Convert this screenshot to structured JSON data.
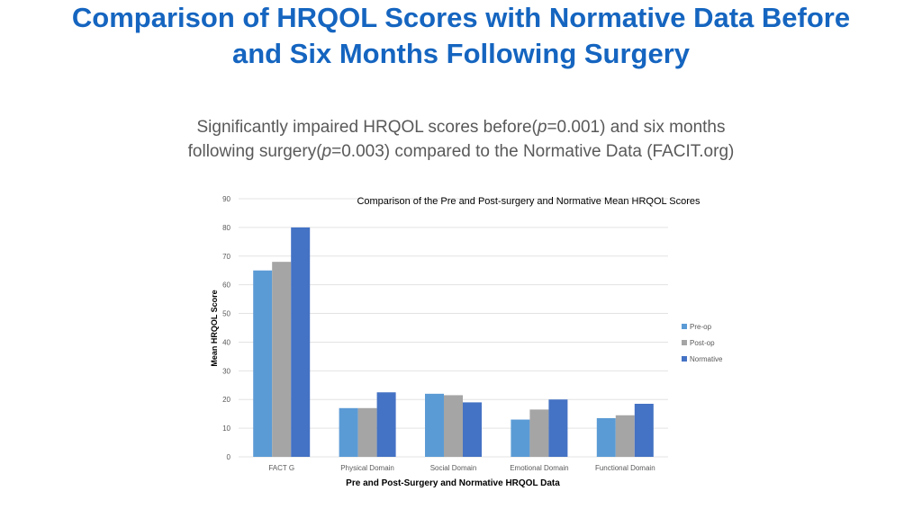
{
  "slide": {
    "title_line1": "Comparison of HRQOL Scores with Normative Data Before",
    "title_line2": "and Six Months Following Surgery",
    "subtitle_line1_a": "Significantly impaired HRQOL scores before(",
    "subtitle_line1_p": "p",
    "subtitle_line1_b": "=0.001) and six months",
    "subtitle_line2_a": "following surgery(",
    "subtitle_line2_p": "p",
    "subtitle_line2_b": "=0.003) compared to the Normative Data (FACIT.org)"
  },
  "chart_data": {
    "type": "bar",
    "title": "Comparison  of the Pre and Post-surgery and Normative Mean HRQOL Scores",
    "xlabel": "Pre and Post-Surgery and Normative HRQOL Data",
    "ylabel": "Mean HRQOL Score",
    "ylim": [
      0,
      90
    ],
    "yticks": [
      0,
      10,
      20,
      30,
      40,
      50,
      60,
      70,
      80,
      90
    ],
    "grid": true,
    "legend_position": "right",
    "categories": [
      "FACT G",
      "Physical Domain",
      "Social Domain",
      "Emotional Domain",
      "Functional Domain"
    ],
    "series": [
      {
        "name": "Pre-op",
        "color": "#5b9bd5",
        "values": [
          65,
          17,
          22,
          13,
          13.5
        ]
      },
      {
        "name": "Post-op",
        "color": "#a5a5a5",
        "values": [
          68,
          17,
          21.5,
          16.5,
          14.5
        ]
      },
      {
        "name": "Normative",
        "color": "#4472c4",
        "values": [
          80,
          22.5,
          19,
          20,
          18.5
        ]
      }
    ]
  }
}
